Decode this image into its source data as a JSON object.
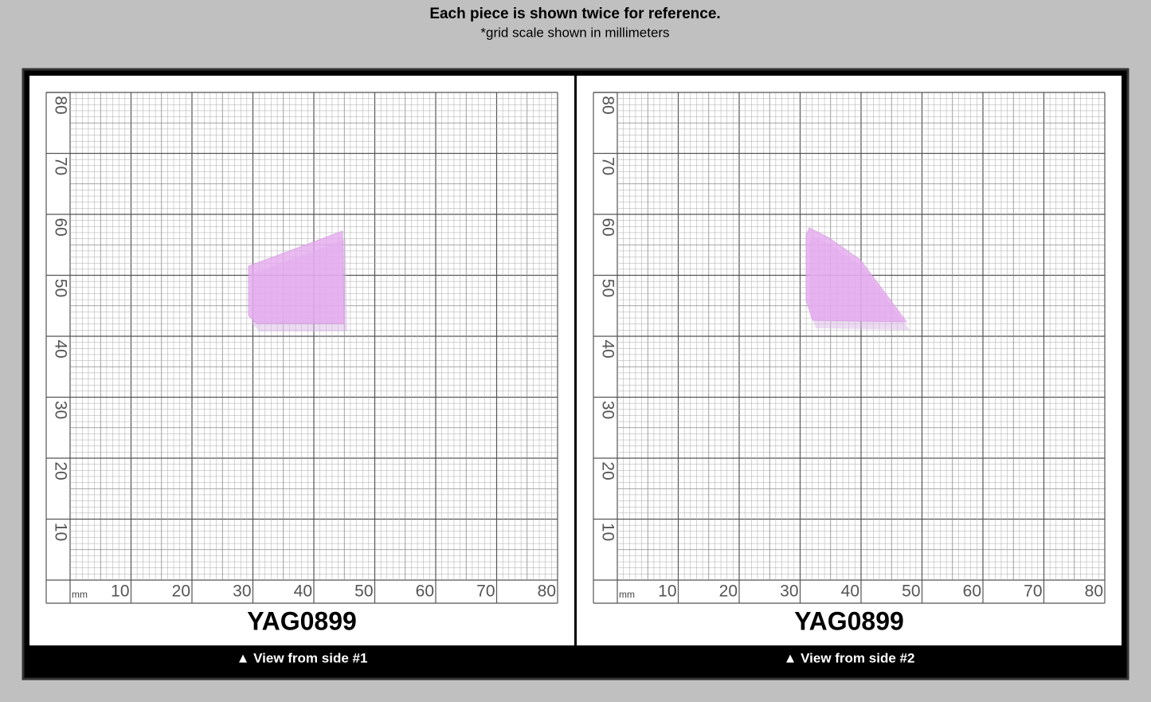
{
  "header": {
    "title": "Each piece is shown twice for reference.",
    "subtitle": "*grid scale shown in millimeters"
  },
  "panels": [
    {
      "grid": {
        "unit": "mm",
        "x_labels": [
          "10",
          "20",
          "30",
          "40",
          "50",
          "60",
          "70",
          "80"
        ],
        "y_labels": [
          "80",
          "70",
          "60",
          "50",
          "40",
          "30",
          "20",
          "10"
        ]
      },
      "code": "YAG0899",
      "caption": "▲ View from side #1"
    },
    {
      "grid": {
        "unit": "mm",
        "x_labels": [
          "10",
          "20",
          "30",
          "40",
          "50",
          "60",
          "70",
          "80"
        ],
        "y_labels": [
          "80",
          "70",
          "60",
          "50",
          "40",
          "30",
          "20",
          "10"
        ]
      },
      "code": "YAG0899",
      "caption": "▲ View from side #2"
    }
  ]
}
